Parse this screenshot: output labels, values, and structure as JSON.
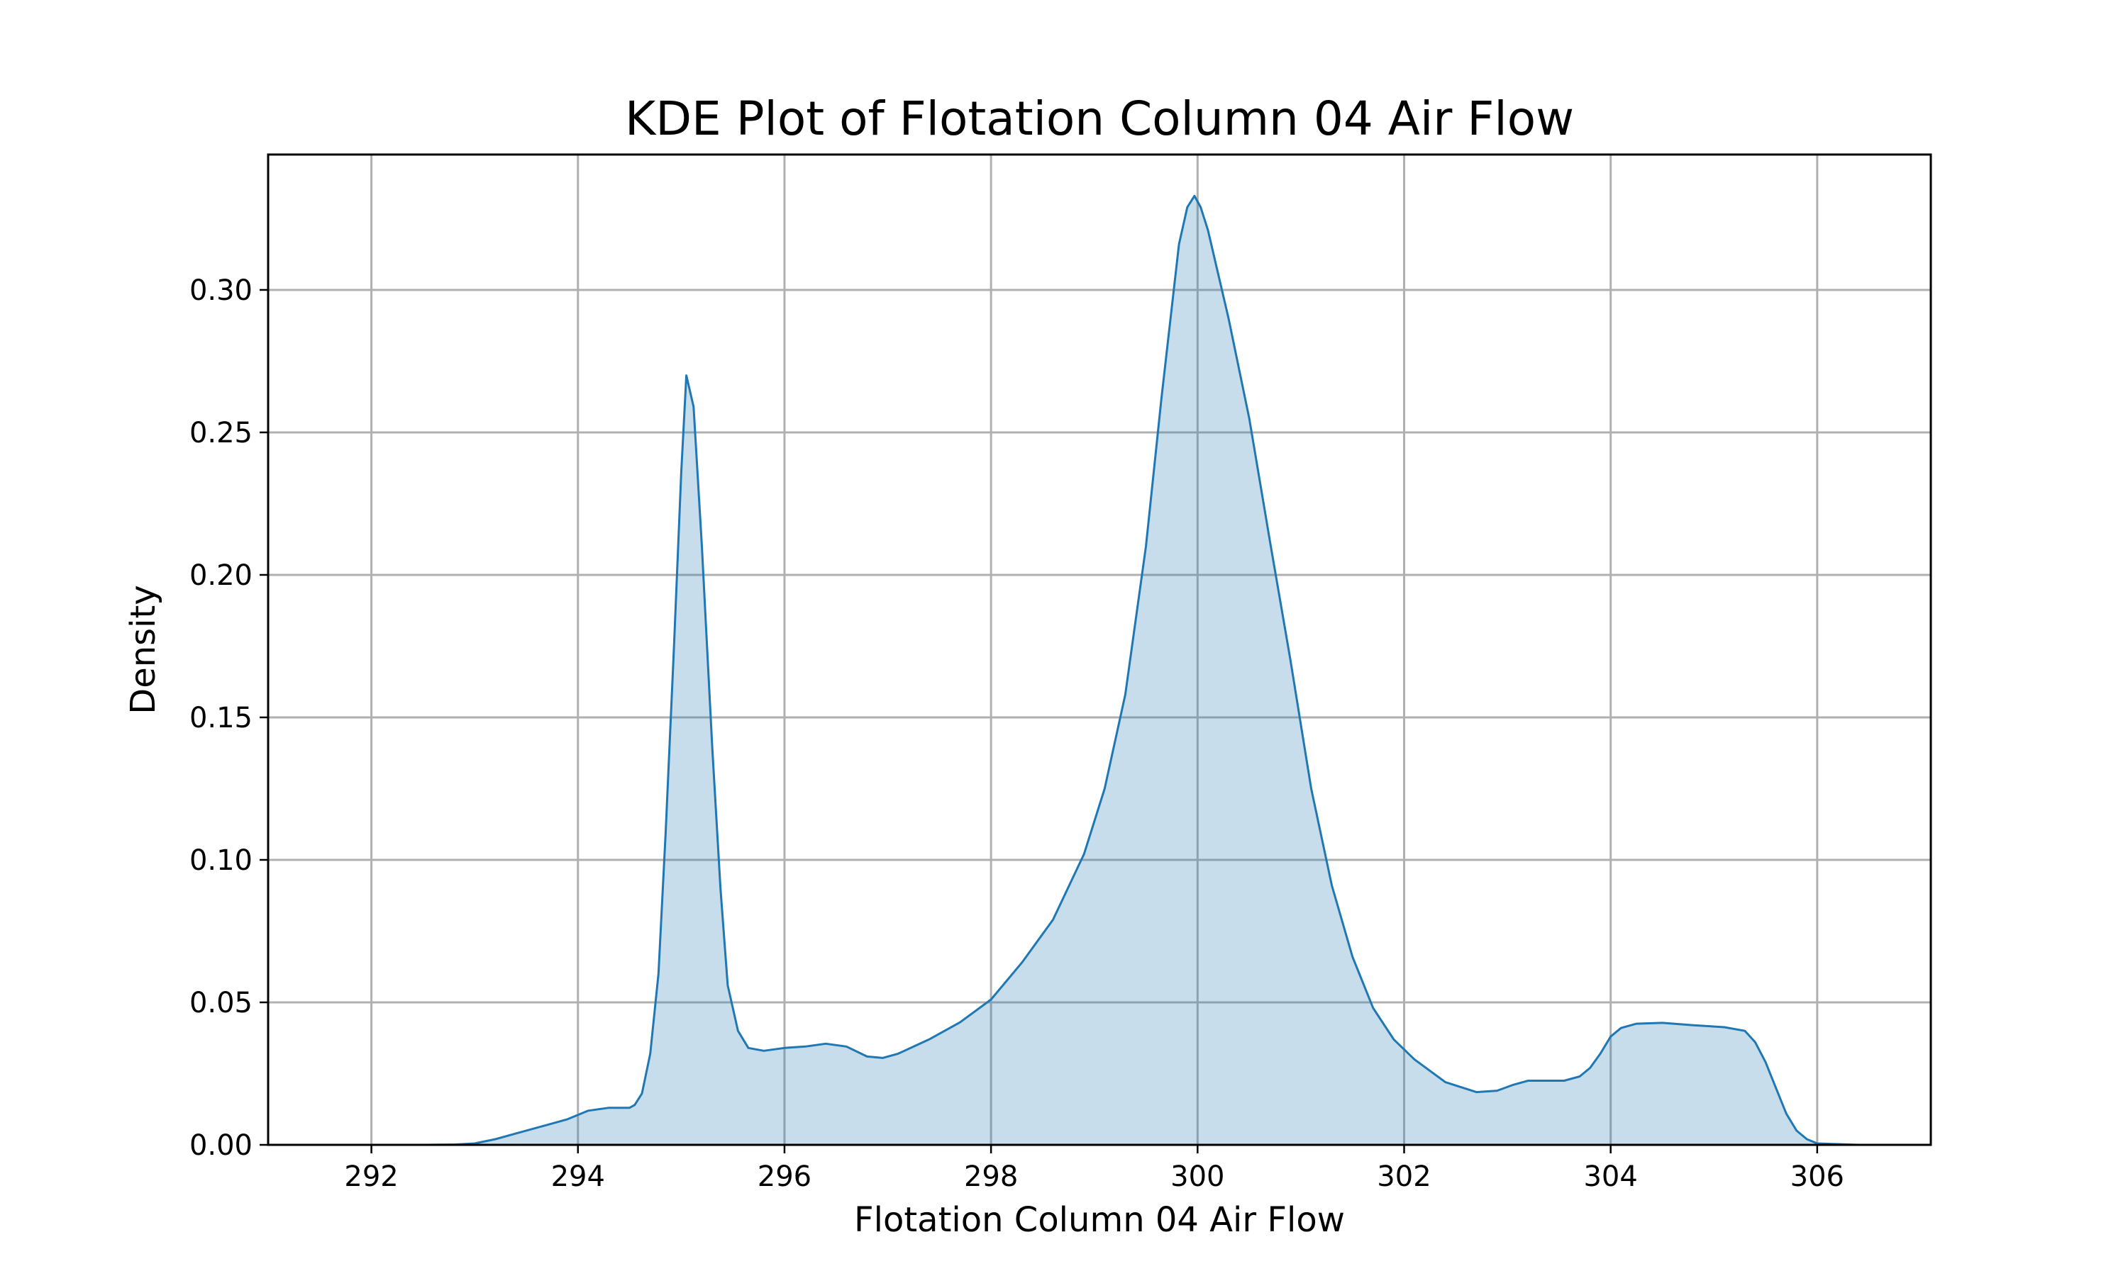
{
  "chart_data": {
    "type": "area",
    "title": "KDE Plot of Flotation Column 04 Air Flow",
    "xlabel": "Flotation Column 04 Air Flow",
    "ylabel": "Density",
    "xlim": [
      291.0,
      307.1
    ],
    "ylim": [
      0.0,
      0.3475
    ],
    "xticks": [
      292,
      294,
      296,
      298,
      300,
      302,
      304,
      306
    ],
    "xtick_labels": [
      "292",
      "294",
      "296",
      "298",
      "300",
      "302",
      "304",
      "306"
    ],
    "yticks": [
      0.0,
      0.05,
      0.1,
      0.15,
      0.2,
      0.25,
      0.3
    ],
    "ytick_labels": [
      "0.00",
      "0.05",
      "0.10",
      "0.15",
      "0.20",
      "0.25",
      "0.30"
    ],
    "grid": true,
    "line_color": "#1f77b4",
    "fill_color": "#1f77b4",
    "fill_alpha": 0.25,
    "series": [
      {
        "x": [
          291.7,
          292.5,
          292.8,
          293.0,
          293.2,
          293.4,
          293.7,
          293.9,
          294.1,
          294.3,
          294.5,
          294.55,
          294.62,
          294.7,
          294.78,
          294.85,
          294.93,
          295.0,
          295.05,
          295.12,
          295.2,
          295.3,
          295.38,
          295.45,
          295.55,
          295.65,
          295.8,
          296.0,
          296.2,
          296.4,
          296.6,
          296.8,
          296.95,
          297.1,
          297.4,
          297.7,
          298.0,
          298.3,
          298.6,
          298.9,
          299.1,
          299.3,
          299.5,
          299.65,
          299.82,
          299.9,
          299.97,
          300.03,
          300.1,
          300.3,
          300.5,
          300.7,
          300.9,
          301.1,
          301.3,
          301.5,
          301.7,
          301.9,
          302.1,
          302.4,
          302.7,
          302.9,
          303.05,
          303.2,
          303.4,
          303.55,
          303.7,
          303.8,
          303.9,
          304.0,
          304.1,
          304.25,
          304.5,
          304.8,
          305.1,
          305.3,
          305.4,
          305.5,
          305.6,
          305.7,
          305.8,
          305.9,
          306.0,
          306.4
        ],
        "y": [
          0.0,
          0.0,
          0.0001,
          0.0005,
          0.002,
          0.004,
          0.007,
          0.009,
          0.012,
          0.013,
          0.013,
          0.014,
          0.018,
          0.032,
          0.06,
          0.11,
          0.175,
          0.236,
          0.27,
          0.259,
          0.21,
          0.14,
          0.09,
          0.056,
          0.04,
          0.034,
          0.033,
          0.034,
          0.0345,
          0.0355,
          0.0345,
          0.031,
          0.0305,
          0.032,
          0.037,
          0.043,
          0.051,
          0.064,
          0.079,
          0.102,
          0.125,
          0.158,
          0.21,
          0.262,
          0.316,
          0.329,
          0.333,
          0.329,
          0.321,
          0.29,
          0.255,
          0.212,
          0.17,
          0.125,
          0.091,
          0.066,
          0.048,
          0.037,
          0.03,
          0.022,
          0.0185,
          0.019,
          0.021,
          0.0225,
          0.0225,
          0.0225,
          0.024,
          0.027,
          0.032,
          0.038,
          0.041,
          0.0425,
          0.0428,
          0.042,
          0.0413,
          0.04,
          0.036,
          0.029,
          0.02,
          0.011,
          0.005,
          0.002,
          0.0005,
          0.0
        ]
      }
    ]
  }
}
